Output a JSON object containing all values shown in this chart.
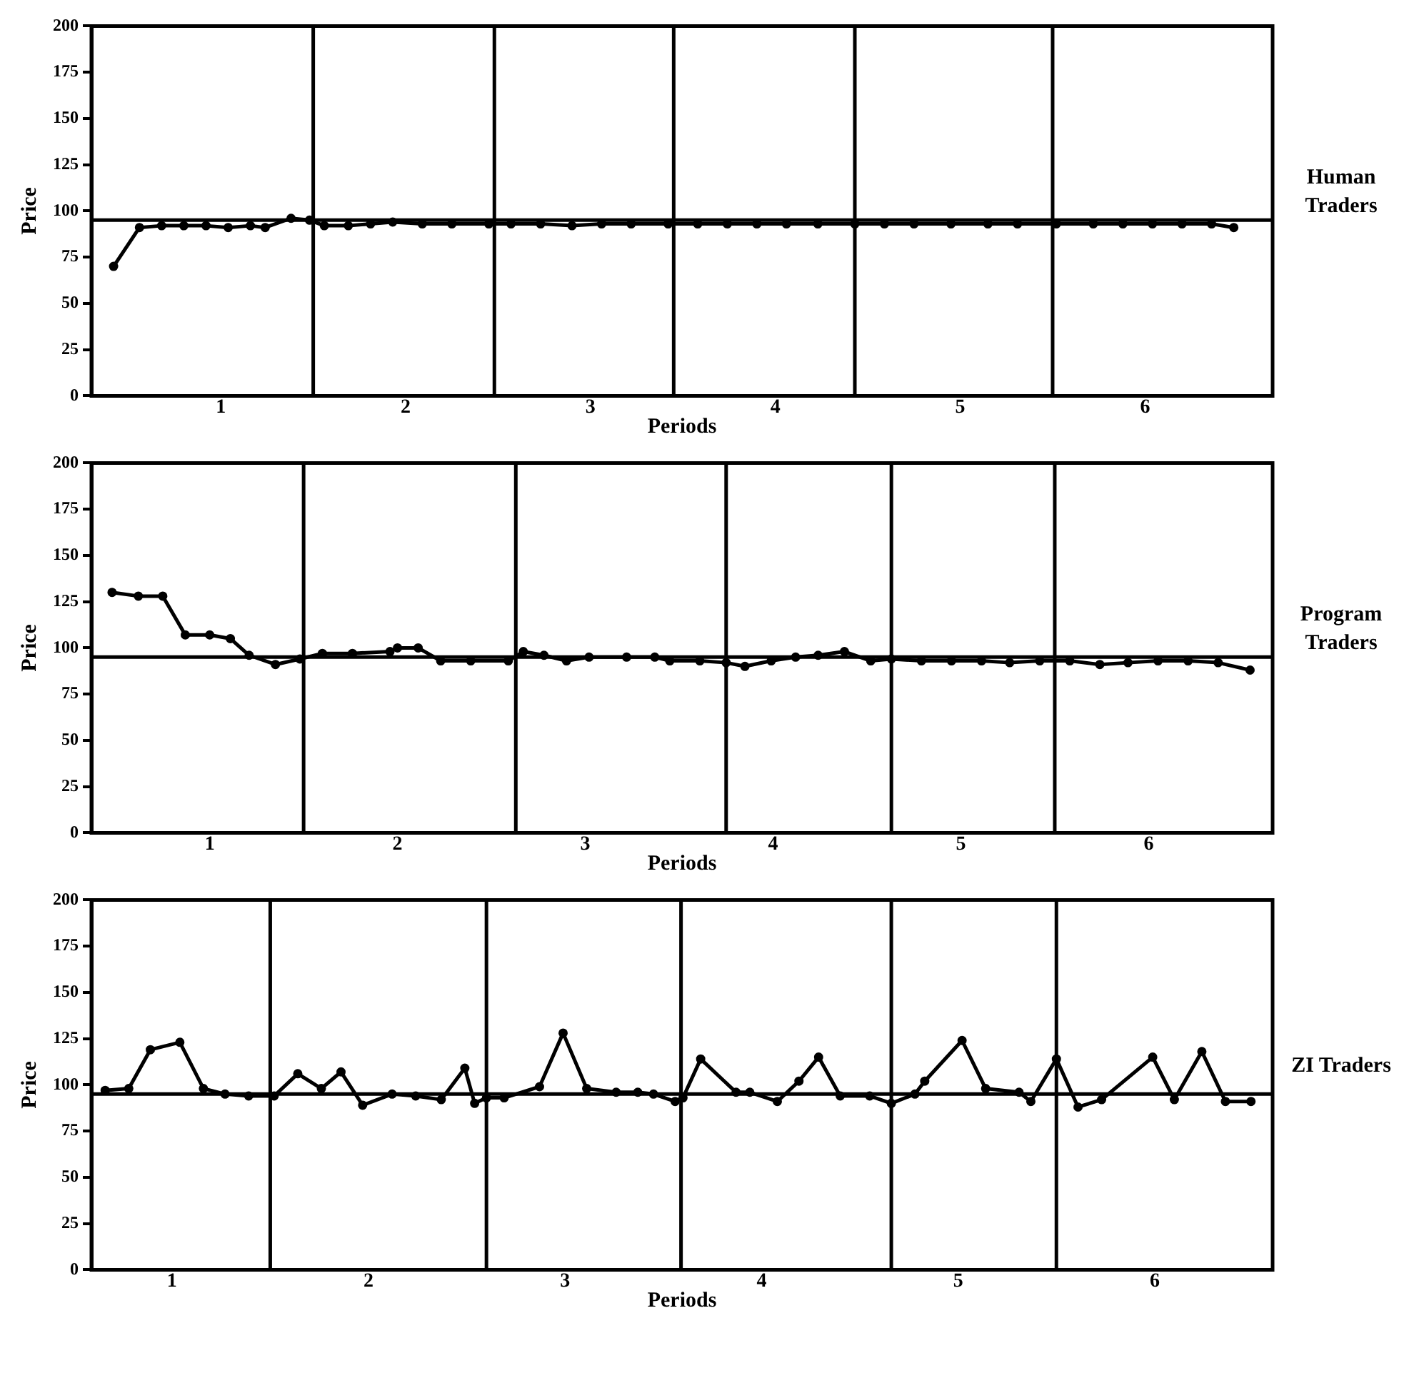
{
  "chart_data": [
    {
      "type": "line",
      "annotations": [
        "Human Traders"
      ],
      "xlabel": "Periods",
      "ylabel": "Price",
      "color": "#000000",
      "marker": "circle",
      "line_style": "solid",
      "x": [
        0.42,
        0.56,
        0.68,
        0.8,
        0.92,
        1.04,
        1.16,
        1.24,
        1.38,
        1.48,
        1.56,
        1.69,
        1.81,
        1.93,
        2.09,
        2.25,
        2.45,
        2.57,
        2.73,
        2.9,
        3.06,
        3.22,
        3.42,
        3.58,
        3.74,
        3.9,
        4.06,
        4.23,
        4.43,
        4.59,
        4.75,
        4.95,
        5.15,
        5.31,
        5.52,
        5.72,
        5.88,
        6.04,
        6.2,
        6.36,
        6.48
      ],
      "values": [
        70,
        91,
        92,
        92,
        92,
        91,
        92,
        91,
        96,
        95,
        92,
        92,
        93,
        94,
        93,
        93,
        93,
        93,
        93,
        92,
        93,
        93,
        93,
        93,
        93,
        93,
        93,
        93,
        93,
        93,
        93,
        93,
        93,
        93,
        93,
        93,
        93,
        93,
        93,
        93,
        91
      ],
      "xlim": [
        0.3,
        6.69
      ],
      "xticks": [
        1,
        2,
        3,
        4,
        5,
        6
      ],
      "ylim": [
        0,
        200
      ],
      "yticks": [
        0,
        25,
        50,
        75,
        100,
        125,
        150,
        175,
        200
      ],
      "ref_lines": [
        {
          "axis": "y",
          "value": 95
        },
        {
          "axis": "x",
          "value": 1.5
        },
        {
          "axis": "x",
          "value": 2.48
        },
        {
          "axis": "x",
          "value": 3.45
        },
        {
          "axis": "x",
          "value": 4.43
        },
        {
          "axis": "x",
          "value": 5.5
        }
      ]
    },
    {
      "type": "line",
      "annotations": [
        "Program Traders"
      ],
      "xlabel": "Periods",
      "ylabel": "Price",
      "color": "#000000",
      "marker": "circle",
      "line_style": "solid",
      "x": [
        0.48,
        0.62,
        0.75,
        0.87,
        1.0,
        1.11,
        1.21,
        1.35,
        1.48,
        1.6,
        1.76,
        1.96,
        2.0,
        2.11,
        2.23,
        2.39,
        2.59,
        2.67,
        2.78,
        2.9,
        3.02,
        3.22,
        3.37,
        3.45,
        3.61,
        3.75,
        3.85,
        3.99,
        4.12,
        4.24,
        4.38,
        4.52,
        4.63,
        4.79,
        4.95,
        5.11,
        5.26,
        5.42,
        5.58,
        5.74,
        5.89,
        6.05,
        6.21,
        6.37,
        6.54
      ],
      "values": [
        130,
        128,
        128,
        107,
        107,
        105,
        96,
        91,
        94,
        97,
        97,
        98,
        100,
        100,
        93,
        93,
        93,
        98,
        96,
        93,
        95,
        95,
        95,
        93,
        93,
        92,
        90,
        93,
        95,
        96,
        98,
        93,
        94,
        93,
        93,
        93,
        92,
        93,
        93,
        91,
        92,
        93,
        93,
        92,
        88
      ],
      "xlim": [
        0.37,
        6.66
      ],
      "xticks": [
        1,
        2,
        3,
        4,
        5,
        6
      ],
      "ylim": [
        0,
        200
      ],
      "yticks": [
        0,
        25,
        50,
        75,
        100,
        125,
        150,
        175,
        200
      ],
      "ref_lines": [
        {
          "axis": "y",
          "value": 95
        },
        {
          "axis": "x",
          "value": 1.5
        },
        {
          "axis": "x",
          "value": 2.63
        },
        {
          "axis": "x",
          "value": 3.75
        },
        {
          "axis": "x",
          "value": 4.63
        },
        {
          "axis": "x",
          "value": 5.5
        }
      ]
    },
    {
      "type": "line",
      "annotations": [
        "ZI Traders"
      ],
      "xlabel": "Periods",
      "ylabel": "Price",
      "color": "#000000",
      "marker": "circle",
      "line_style": "solid",
      "x": [
        0.66,
        0.78,
        0.89,
        1.04,
        1.16,
        1.27,
        1.39,
        1.52,
        1.64,
        1.76,
        1.86,
        1.97,
        2.12,
        2.24,
        2.37,
        2.49,
        2.54,
        2.6,
        2.69,
        2.87,
        2.99,
        3.11,
        3.26,
        3.37,
        3.45,
        3.56,
        3.6,
        3.69,
        3.87,
        3.94,
        4.08,
        4.19,
        4.29,
        4.4,
        4.55,
        4.66,
        4.78,
        4.83,
        5.02,
        5.14,
        5.31,
        5.37,
        5.5,
        5.61,
        5.73,
        5.99,
        6.1,
        6.24,
        6.36,
        6.49
      ],
      "values": [
        97,
        98,
        119,
        123,
        98,
        95,
        94,
        94,
        106,
        98,
        107,
        89,
        95,
        94,
        92,
        109,
        90,
        93,
        93,
        99,
        128,
        98,
        96,
        96,
        95,
        91,
        93,
        114,
        96,
        96,
        91,
        102,
        115,
        94,
        94,
        90,
        95,
        102,
        124,
        98,
        96,
        91,
        114,
        88,
        92,
        115,
        92,
        118,
        91,
        91
      ],
      "xlim": [
        0.59,
        6.6
      ],
      "xticks": [
        1,
        2,
        3,
        4,
        5,
        6
      ],
      "ylim": [
        0,
        200
      ],
      "yticks": [
        0,
        25,
        50,
        75,
        100,
        125,
        150,
        175,
        200
      ],
      "ref_lines": [
        {
          "axis": "y",
          "value": 95
        },
        {
          "axis": "x",
          "value": 1.5
        },
        {
          "axis": "x",
          "value": 2.6
        },
        {
          "axis": "x",
          "value": 3.59
        },
        {
          "axis": "x",
          "value": 4.66
        },
        {
          "axis": "x",
          "value": 5.5
        }
      ]
    }
  ]
}
